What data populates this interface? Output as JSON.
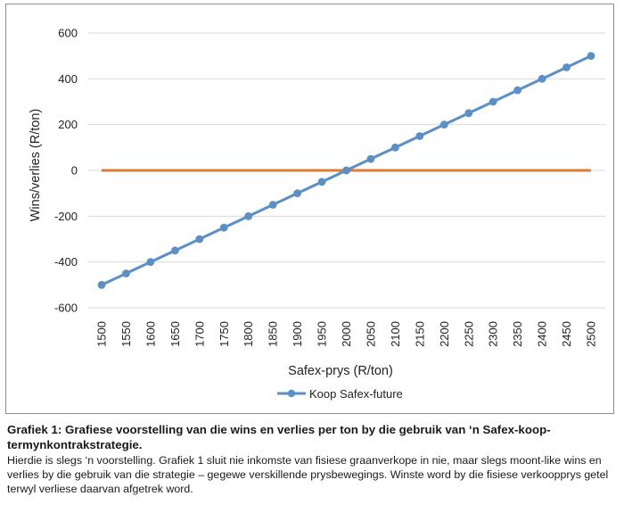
{
  "chart_data": {
    "type": "line",
    "xlabel": "Safex-prys (R/ton)",
    "ylabel": "Wins/verlies (R/ton)",
    "x": [
      1500,
      1550,
      1600,
      1650,
      1700,
      1750,
      1800,
      1850,
      1900,
      1950,
      2000,
      2050,
      2100,
      2150,
      2200,
      2250,
      2300,
      2350,
      2400,
      2450,
      2500
    ],
    "ylim": [
      -600,
      600
    ],
    "yticks": [
      600,
      400,
      200,
      0,
      -200,
      -400,
      -600
    ],
    "tick_labels_x": [
      "1500",
      "1550",
      "1600",
      "1650",
      "1700",
      "1750",
      "1800",
      "1850",
      "1900",
      "1950",
      "2000",
      "2050",
      "2100",
      "2150",
      "2200",
      "2250",
      "2300",
      "2350",
      "2400",
      "2450",
      "2500"
    ],
    "tick_labels_y": [
      "600",
      "400",
      "200",
      "0",
      "-200",
      "-400",
      "-600"
    ],
    "series": [
      {
        "name": "Koop Safex-future",
        "color": "#5b8fc7",
        "markers": true,
        "values": [
          -500,
          -450,
          -400,
          -350,
          -300,
          -250,
          -200,
          -150,
          -100,
          -50,
          0,
          50,
          100,
          150,
          200,
          250,
          300,
          350,
          400,
          450,
          500
        ]
      },
      {
        "color": "#e07b33",
        "markers": false,
        "values": [
          0,
          0,
          0,
          0,
          0,
          0,
          0,
          0,
          0,
          0,
          0,
          0,
          0,
          0,
          0,
          0,
          0,
          0,
          0,
          0,
          0
        ]
      }
    ],
    "legend": {
      "placement": "bottom",
      "entries": [
        "Koop Safex-future"
      ]
    },
    "grid": {
      "horizontal": true,
      "vertical": false
    }
  },
  "caption": {
    "title": "Grafiek 1: Grafiese voorstelling van die wins en verlies per ton by die gebruik van ‘n Safex-koop-termynkontrakstrategie.",
    "body": "Hierdie is slegs ‘n voorstelling. Grafiek 1 sluit nie inkomste van fisiese graanverkope in nie, maar slegs moont-like wins en verlies by die gebruik van die strategie – gegewe verskillende prysbewegings. Winste word by die fisiese verkoopprys getel terwyl verliese daarvan afgetrek word."
  }
}
